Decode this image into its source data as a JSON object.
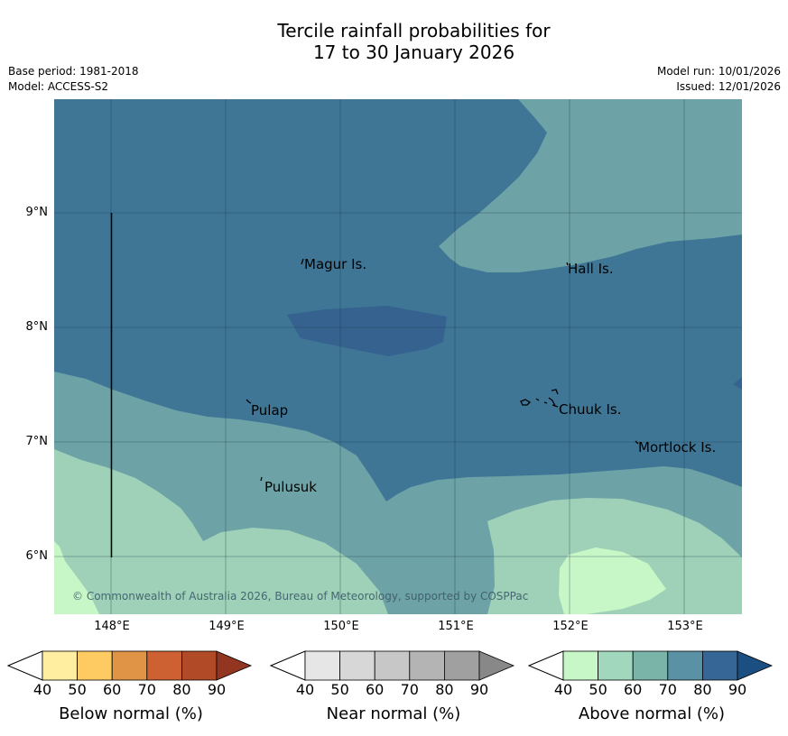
{
  "title": {
    "line1": "Tercile rainfall probabilities for",
    "line2": "17 to 30 January 2026"
  },
  "meta": {
    "base_period": "Base period: 1981-2018",
    "model": "Model: ACCESS-S2",
    "model_run": "Model run: 10/01/2026",
    "issued": "Issued: 12/01/2026"
  },
  "map": {
    "lon_labels": [
      "148°E",
      "149°E",
      "150°E",
      "151°E",
      "152°E",
      "153°E"
    ],
    "lat_labels": [
      "9°N",
      "8°N",
      "7°N",
      "6°N"
    ],
    "places": {
      "magur": "Magur Is.",
      "hall": "Hall Is.",
      "pulap": "Pulap",
      "chuuk": "Chuuk Is.",
      "mortlock": "Mortlock Is.",
      "pulusuk": "Pulusuk"
    },
    "copyright": "© Commonwealth of Australia 2026, Bureau of Meteorology, supported by COSPPac",
    "colors": {
      "above_70_80": "#3f7696",
      "above_80_90": "#35628f",
      "above_60_70": "#6da3a6",
      "above_50_60": "#9ed1b8",
      "above_40_50": "#c8f7c7"
    }
  },
  "colorbars": [
    {
      "label": "Below normal (%)",
      "ticks": [
        "40",
        "50",
        "60",
        "70",
        "80",
        "90"
      ],
      "colors": [
        "#ffeda0",
        "#fecb63",
        "#e09446",
        "#cd6132",
        "#b14a27",
        "#923521"
      ]
    },
    {
      "label": "Near normal (%)",
      "ticks": [
        "40",
        "50",
        "60",
        "70",
        "80",
        "90"
      ],
      "colors": [
        "#e6e6e6",
        "#d7d7d7",
        "#c7c7c7",
        "#b4b4b4",
        "#a0a0a0",
        "#888888"
      ]
    },
    {
      "label": "Above normal (%)",
      "ticks": [
        "40",
        "50",
        "60",
        "70",
        "80",
        "90"
      ],
      "colors": [
        "#c8f7c7",
        "#a1d7bd",
        "#7ab3a8",
        "#5b91a5",
        "#366695",
        "#1b4f82"
      ]
    }
  ]
}
